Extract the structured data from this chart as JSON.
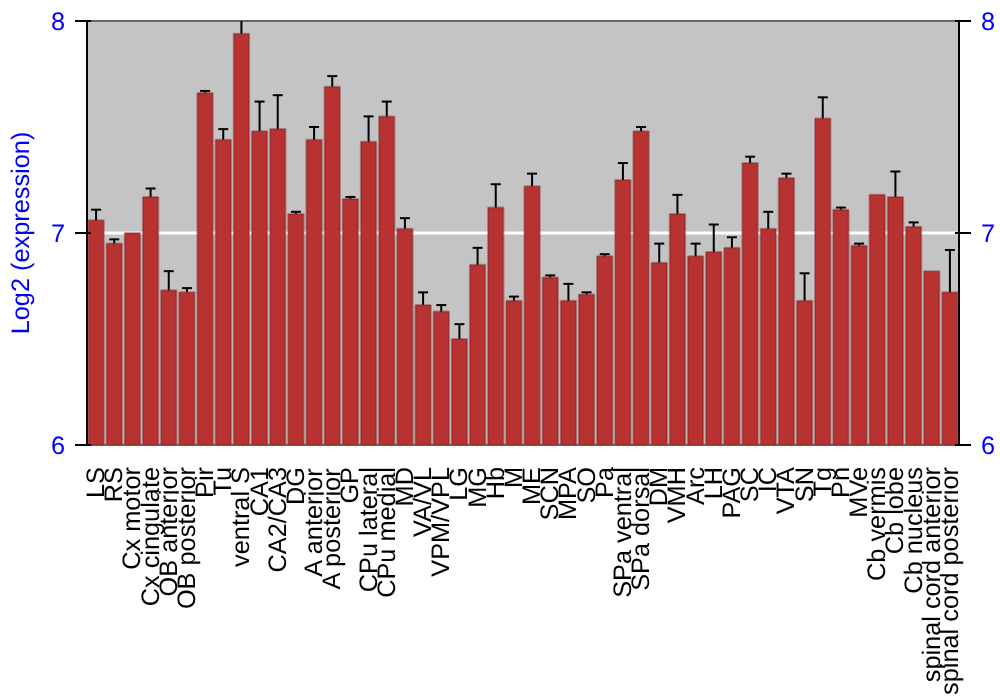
{
  "chart_data": {
    "type": "bar",
    "ylabel": "Log2 (expression)",
    "categories": [
      "LS",
      "RS",
      "Cx motor",
      "Cx cingulate",
      "OB anterior",
      "OB posterior",
      "Pir",
      "Tu",
      "ventral S",
      "CA1",
      "CA2/CA3",
      "DG",
      "A anterior",
      "A posterior",
      "GP",
      "CPu lateral",
      "CPu medial",
      "MD",
      "VA/VL",
      "VPM/VPL",
      "LG",
      "MG",
      "Hb",
      "M",
      "ME",
      "SCN",
      "MPA",
      "SO",
      "Pa",
      "SPa ventral",
      "SPa dorsal",
      "DM",
      "VMH",
      "Arc",
      "LH",
      "PAG",
      "SC",
      "IC",
      "VTA",
      "SN",
      "Tg",
      "Pn",
      "MVe",
      "Cb vermis",
      "Cb lobe",
      "Cb nucleus",
      "spinal cord anterior",
      "spinal cord posterior"
    ],
    "values": [
      7.06,
      6.95,
      7.0,
      7.17,
      6.73,
      6.72,
      7.66,
      7.44,
      7.94,
      7.48,
      7.49,
      7.09,
      7.44,
      7.69,
      7.16,
      7.43,
      7.55,
      7.02,
      6.66,
      6.63,
      6.5,
      6.85,
      7.12,
      6.68,
      7.22,
      6.79,
      6.68,
      6.71,
      6.89,
      7.25,
      7.48,
      6.86,
      7.09,
      6.89,
      6.91,
      6.93,
      7.33,
      7.02,
      7.26,
      6.68,
      7.54,
      7.11,
      6.94,
      7.18,
      7.17,
      7.03,
      6.82,
      6.72
    ],
    "errors": [
      0.05,
      0.02,
      null,
      0.04,
      0.09,
      0.02,
      0.01,
      0.05,
      0.07,
      0.14,
      0.16,
      0.01,
      0.06,
      0.05,
      0.01,
      0.12,
      0.07,
      0.05,
      0.06,
      0.03,
      0.07,
      0.08,
      0.11,
      0.02,
      0.06,
      0.01,
      0.08,
      0.01,
      0.01,
      0.08,
      0.02,
      0.09,
      0.09,
      0.06,
      0.13,
      0.05,
      0.03,
      0.08,
      0.02,
      0.13,
      0.1,
      0.01,
      0.01,
      null,
      0.12,
      0.02,
      null,
      0.2
    ],
    "color": "#b83232",
    "ylim": [
      6,
      8
    ],
    "yticks": [
      6,
      7,
      8
    ],
    "y2lim": [
      6,
      8
    ],
    "y2ticks": [
      6,
      7,
      8
    ],
    "grid": "y"
  }
}
